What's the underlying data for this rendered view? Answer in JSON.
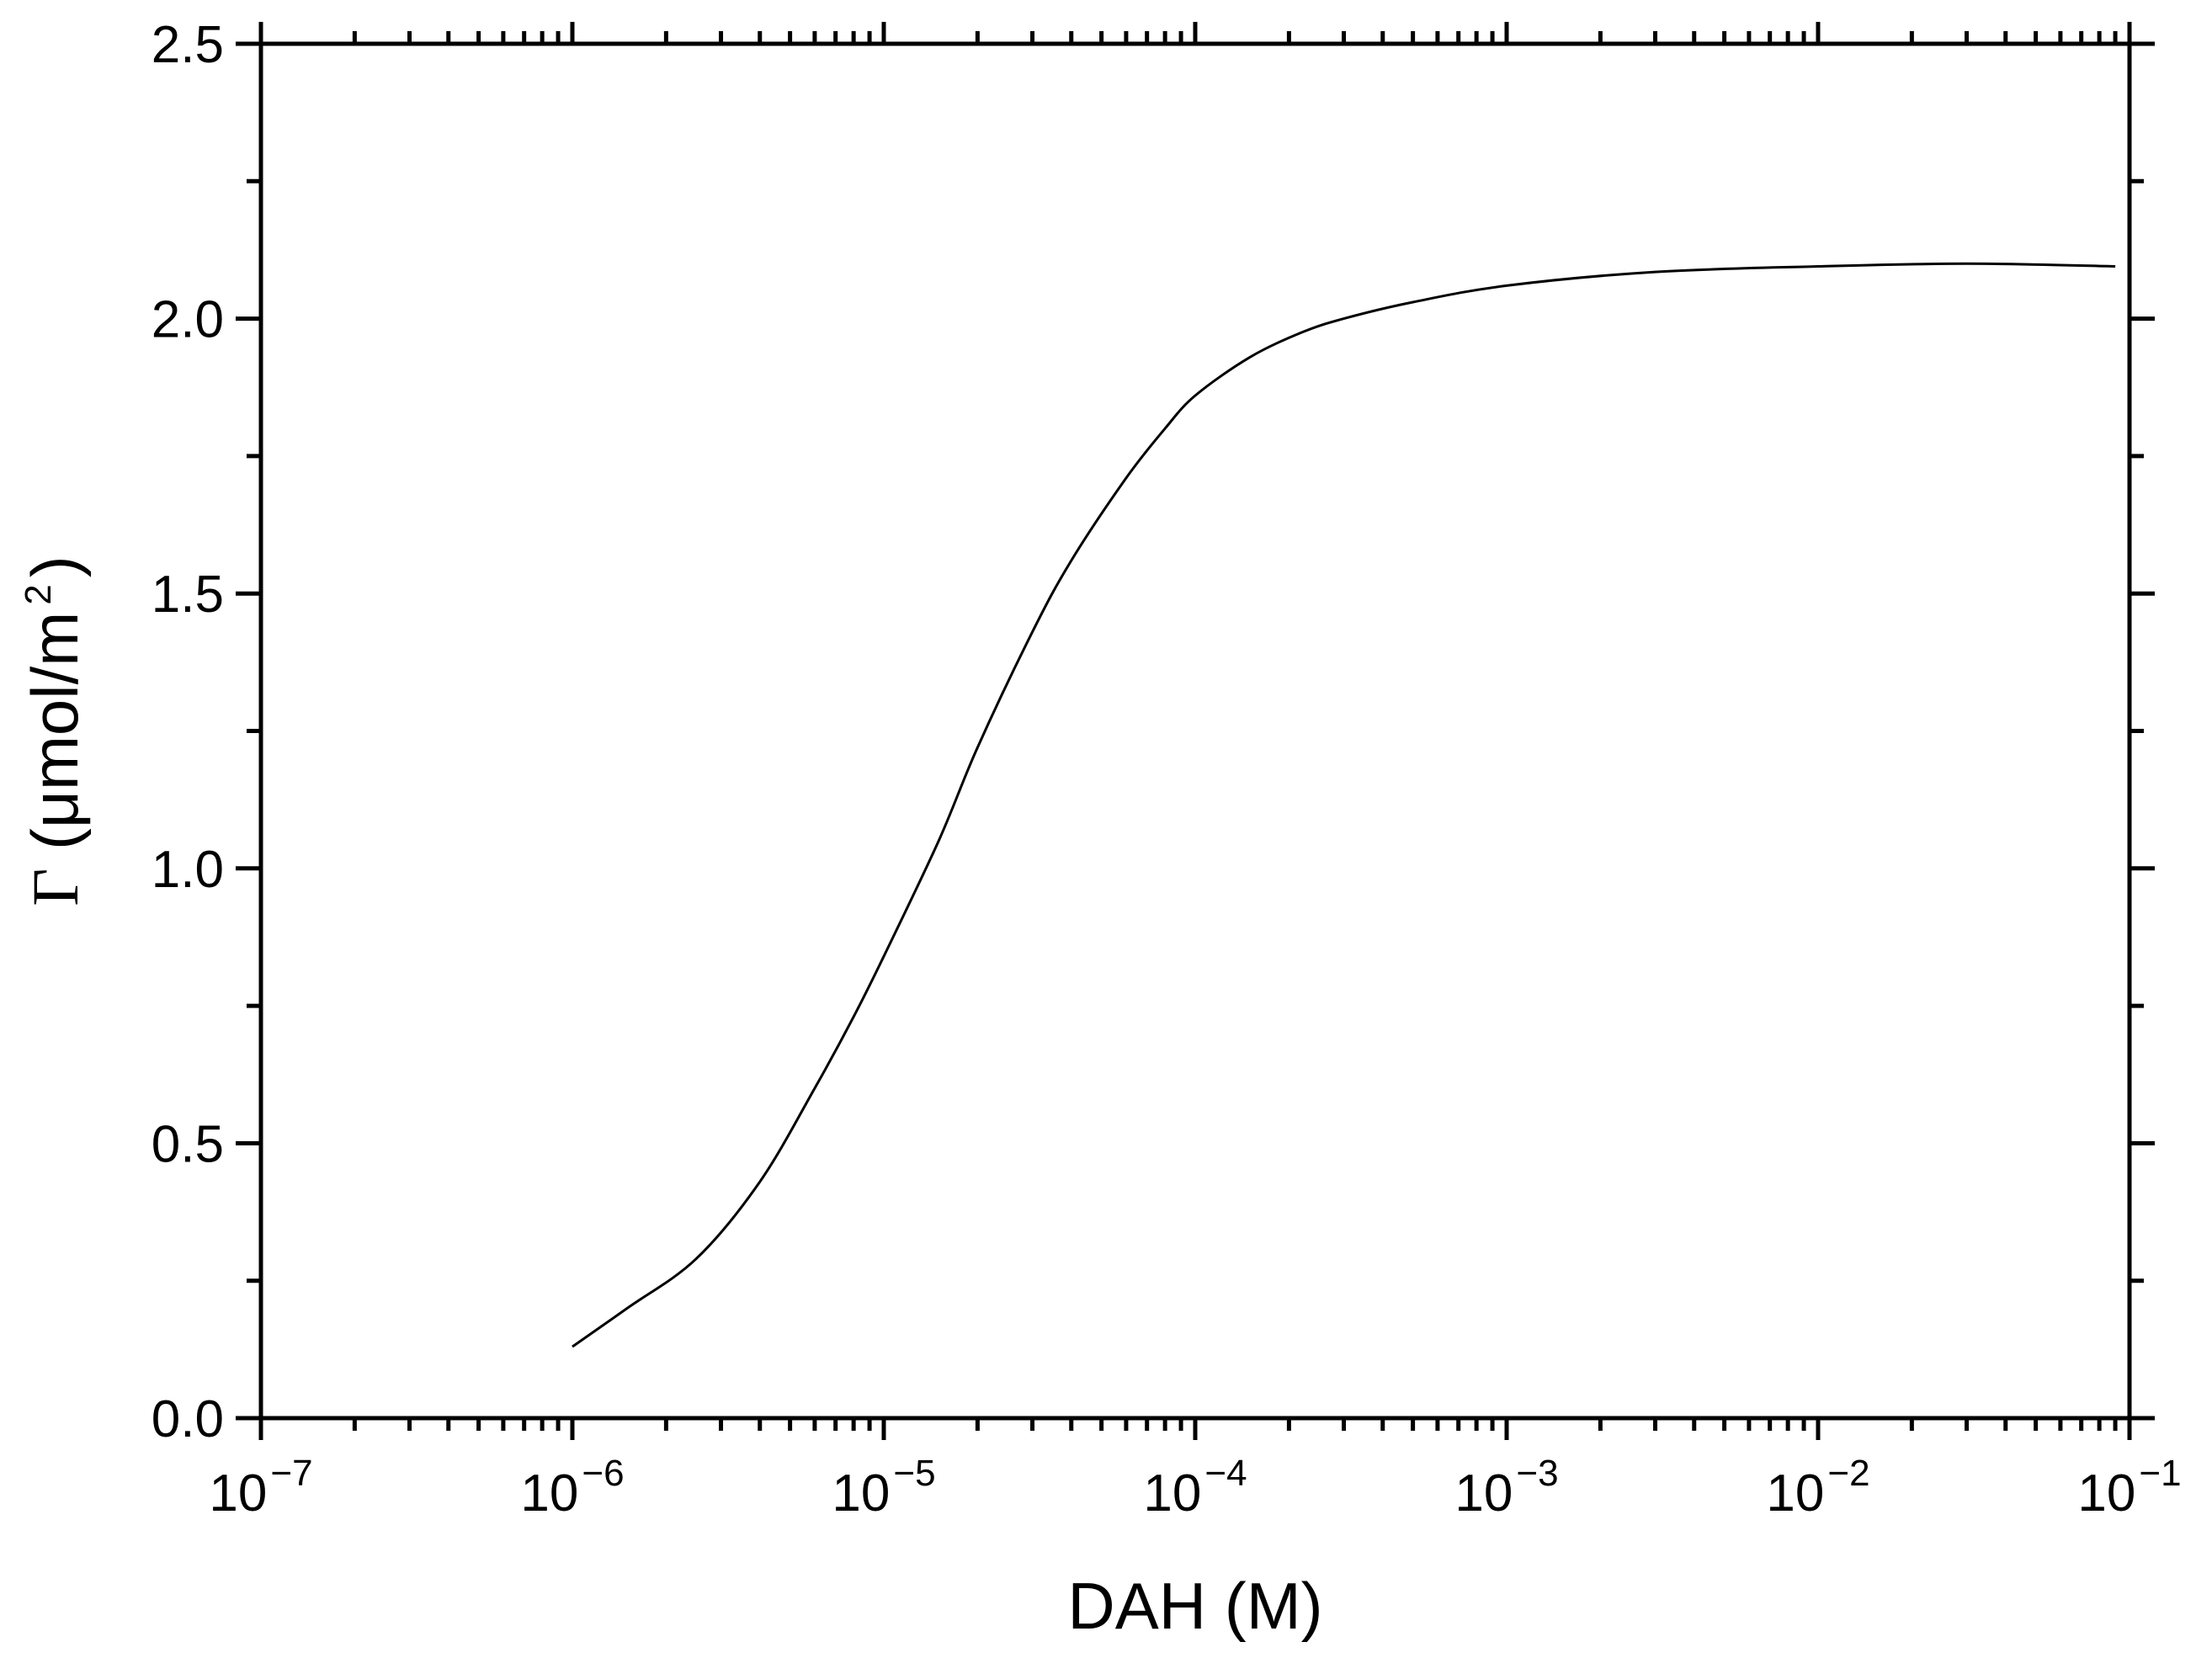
{
  "chart_data": {
    "type": "line",
    "title": "",
    "xlabel": "DAH (M)",
    "ylabel_symbol": "Γ",
    "ylabel_main": " (μmol/m",
    "ylabel_sup": "2",
    "ylabel_close": ")",
    "x_scale": "log",
    "xlim": [
      1e-07,
      0.1
    ],
    "ylim": [
      0,
      2.5
    ],
    "x_ticks": [
      {
        "base": "10",
        "exp": "−7"
      },
      {
        "base": "10",
        "exp": "−6"
      },
      {
        "base": "10",
        "exp": "−5"
      },
      {
        "base": "10",
        "exp": "−4"
      },
      {
        "base": "10",
        "exp": "−3"
      },
      {
        "base": "10",
        "exp": "−2"
      },
      {
        "base": "10",
        "exp": "−1"
      }
    ],
    "y_ticks": [
      "0.0",
      "0.5",
      "1.0",
      "1.5",
      "2.0",
      "2.5"
    ],
    "grid": false,
    "legend": "none",
    "series": [
      {
        "color": "#000000",
        "x": [
          1e-06,
          1.5e-06,
          2.5e-06,
          4e-06,
          6e-06,
          8e-06,
          1e-05,
          1.5e-05,
          2e-05,
          3e-05,
          4e-05,
          6e-05,
          8e-05,
          0.0001,
          0.00015,
          0.00022,
          0.0003,
          0.0005,
          0.001,
          0.003,
          0.01,
          0.03,
          0.09
        ],
        "y": [
          0.13,
          0.2,
          0.29,
          0.43,
          0.6,
          0.73,
          0.84,
          1.05,
          1.22,
          1.43,
          1.56,
          1.71,
          1.8,
          1.86,
          1.93,
          1.975,
          2.0,
          2.03,
          2.06,
          2.085,
          2.095,
          2.1,
          2.095
        ]
      }
    ]
  }
}
